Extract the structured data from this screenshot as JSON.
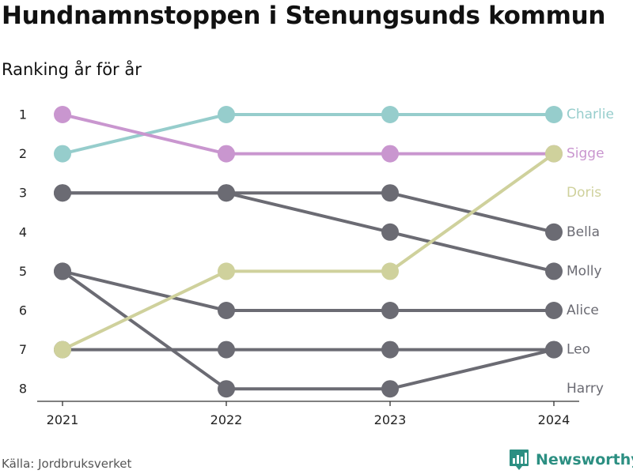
{
  "title": "Hundnamnstoppen i Stenungsunds kommun",
  "subtitle": "Ranking år för år",
  "source": "Källa: Jordbruksverket",
  "brand": {
    "name": "Newsworthy",
    "icon": "bar-chart-logo-icon",
    "color": "#2c8f82"
  },
  "chart_data": {
    "type": "line",
    "chart_kind": "bump",
    "x": [
      "2021",
      "2022",
      "2023",
      "2024"
    ],
    "ylim": [
      1,
      8
    ],
    "y_reversed": true,
    "y_ticks": [
      1,
      2,
      3,
      4,
      5,
      6,
      7,
      8
    ],
    "grid": false,
    "legend": "direct labels at right end",
    "series": [
      {
        "name": "Charlie",
        "values": [
          2,
          1,
          1,
          1
        ],
        "color": "#96cdcc"
      },
      {
        "name": "Sigge",
        "values": [
          1,
          2,
          2,
          2
        ],
        "color": "#c996cf"
      },
      {
        "name": "Doris",
        "values": [
          7,
          5,
          5,
          2
        ],
        "color": "#cfd19c"
      },
      {
        "name": "Bella",
        "values": [
          3,
          3,
          3,
          4
        ],
        "color": "#6b6b73"
      },
      {
        "name": "Molly",
        "values": [
          3,
          3,
          4,
          5
        ],
        "color": "#6b6b73"
      },
      {
        "name": "Alice",
        "values": [
          5,
          6,
          6,
          6
        ],
        "color": "#6b6b73"
      },
      {
        "name": "Leo",
        "values": [
          7,
          7,
          7,
          7
        ],
        "color": "#6b6b73"
      },
      {
        "name": "Harry",
        "values": [
          5,
          8,
          8,
          7
        ],
        "color": "#6b6b73"
      }
    ],
    "end_labels": [
      {
        "text": "Charlie",
        "rank": 1,
        "color": "#96cdcc"
      },
      {
        "text": "Sigge",
        "rank": 2,
        "color": "#c996cf"
      },
      {
        "text": "Doris",
        "rank": 3,
        "color": "#cfd19c"
      },
      {
        "text": "Bella",
        "rank": 4,
        "color": "#6b6b73"
      },
      {
        "text": "Molly",
        "rank": 5,
        "color": "#6b6b73"
      },
      {
        "text": "Alice",
        "rank": 6,
        "color": "#6b6b73"
      },
      {
        "text": "Leo",
        "rank": 7,
        "color": "#6b6b73"
      },
      {
        "text": "Harry",
        "rank": 8,
        "color": "#6b6b73"
      }
    ]
  }
}
